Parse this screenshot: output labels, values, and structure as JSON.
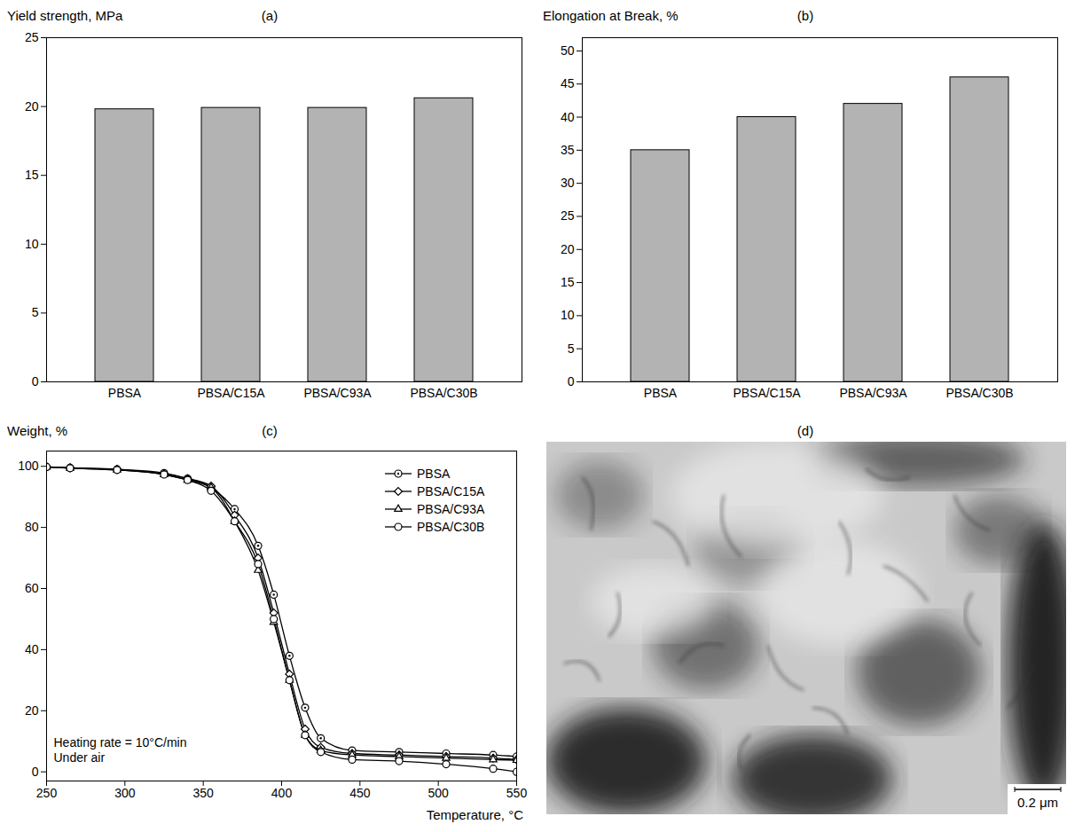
{
  "chart_data": [
    {
      "type": "bar",
      "title": "(a)",
      "y_label": "Yield strength, MPa",
      "categories": [
        "PBSA",
        "PBSA/C15A",
        "PBSA/C93A",
        "PBSA/C30B"
      ],
      "values": [
        19.8,
        19.9,
        19.9,
        20.6
      ],
      "color": "#b3b3b3",
      "ylim": [
        0,
        25
      ],
      "yticks": [
        0,
        5,
        10,
        15,
        20,
        25
      ],
      "grid": false
    },
    {
      "type": "bar",
      "title": "(b)",
      "y_label": "Elongation at Break, %",
      "categories": [
        "PBSA",
        "PBSA/C15A",
        "PBSA/C93A",
        "PBSA/C30B"
      ],
      "values": [
        35,
        40,
        42,
        46
      ],
      "color": "#b3b3b3",
      "ylim": [
        0,
        52
      ],
      "yticks": [
        0,
        5,
        10,
        15,
        20,
        25,
        30,
        35,
        40,
        45,
        50
      ],
      "grid": false
    },
    {
      "type": "line",
      "title": "(c)",
      "y_label": "Weight, %",
      "x_label": "Temperature, °C",
      "x": [
        250,
        265,
        295,
        325,
        340,
        355,
        370,
        385,
        395,
        405,
        415,
        425,
        445,
        475,
        505,
        535,
        550
      ],
      "series": [
        {
          "name": "PBSA",
          "color": "#000000",
          "marker": "circle_dot",
          "values": [
            99.8,
            99.5,
            99,
            97.8,
            96,
            93,
            86,
            74,
            58,
            38,
            21,
            11,
            7,
            6.5,
            6,
            5.5,
            5
          ]
        },
        {
          "name": "PBSA/C15A",
          "color": "#000000",
          "marker": "diamond",
          "values": [
            99.8,
            99.5,
            99,
            97.5,
            96,
            93.5,
            84,
            70,
            52,
            32,
            14,
            8,
            6,
            5.5,
            5,
            4.5,
            4
          ]
        },
        {
          "name": "PBSA/C93A",
          "color": "#000000",
          "marker": "triangle",
          "values": [
            99.8,
            99.4,
            98.8,
            97.3,
            95.5,
            93,
            82,
            66,
            49,
            30,
            12,
            7,
            5.5,
            5,
            4.5,
            4,
            3.8
          ]
        },
        {
          "name": "PBSA/C30B",
          "color": "#000000",
          "marker": "circle",
          "values": [
            99.8,
            99.4,
            98.8,
            97.3,
            95.5,
            92,
            82,
            68,
            50,
            30,
            12,
            6.5,
            4,
            3.5,
            2.5,
            1,
            0
          ]
        }
      ],
      "annotations": [
        "Heating rate = 10°C/min",
        "Under air"
      ],
      "xlim": [
        250,
        550
      ],
      "xticks": [
        250,
        300,
        350,
        400,
        450,
        500,
        550
      ],
      "ylim": [
        -3,
        105
      ],
      "yticks": [
        0,
        20,
        40,
        60,
        80,
        100
      ],
      "legend": "top-right",
      "grid": false
    },
    {
      "type": "image",
      "title": "(d)",
      "scale_bar": "0.2 μm"
    }
  ]
}
